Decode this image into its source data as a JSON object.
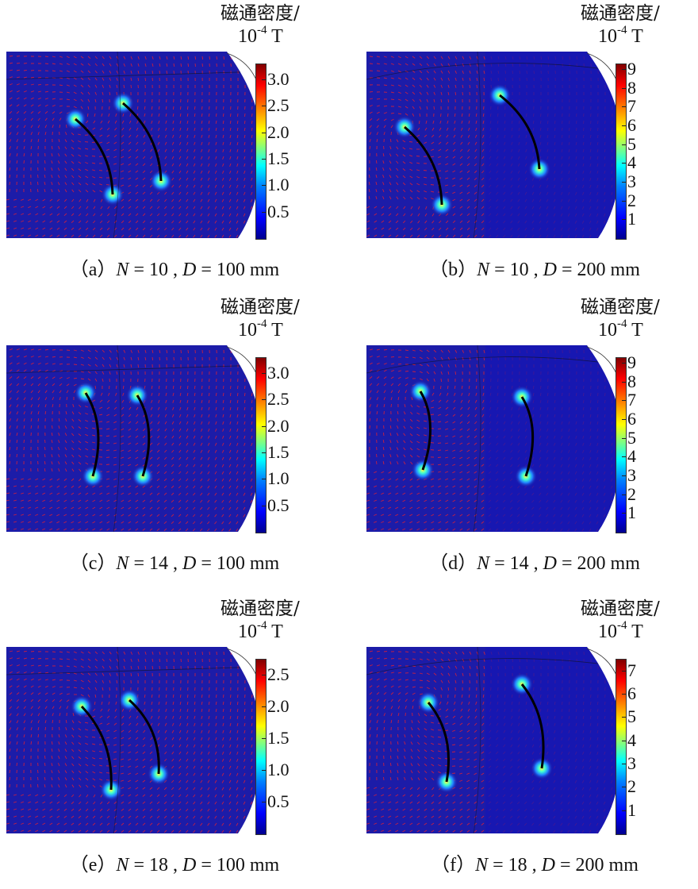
{
  "colorbar_title": "磁通密度/",
  "colorbar_unit": {
    "base": "10",
    "exponent": "-4",
    "symbol": "T"
  },
  "colormap": [
    "#00008f",
    "#0000ff",
    "#00ffff",
    "#ffff00",
    "#ff0000",
    "#800000"
  ],
  "field_color": "#1c1ca8",
  "arrow_color": "#ff2020",
  "panels": [
    {
      "label": "a",
      "N": "10",
      "D": "100",
      "unit": "mm",
      "ticks": [
        "3.0",
        "2.5",
        "2.0",
        "1.5",
        "1.0",
        "0.5"
      ],
      "range": [
        0,
        3.3
      ]
    },
    {
      "label": "b",
      "N": "10",
      "D": "200",
      "unit": "mm",
      "ticks": [
        "9",
        "8",
        "7",
        "6",
        "5",
        "4",
        "3",
        "2",
        "1"
      ],
      "range": [
        0,
        9.3
      ]
    },
    {
      "label": "c",
      "N": "14",
      "D": "100",
      "unit": "mm",
      "ticks": [
        "3.0",
        "2.5",
        "2.0",
        "1.5",
        "1.0",
        "0.5"
      ],
      "range": [
        0,
        3.3
      ]
    },
    {
      "label": "d",
      "N": "14",
      "D": "200",
      "unit": "mm",
      "ticks": [
        "9",
        "8",
        "7",
        "6",
        "5",
        "4",
        "3",
        "2",
        "1"
      ],
      "range": [
        0,
        9.3
      ]
    },
    {
      "label": "e",
      "N": "18",
      "D": "100",
      "unit": "mm",
      "ticks": [
        "2.5",
        "2.0",
        "1.5",
        "1.0",
        "0.5"
      ],
      "range": [
        0,
        2.75
      ]
    },
    {
      "label": "f",
      "N": "18",
      "D": "200",
      "unit": "mm",
      "ticks": [
        "7",
        "6",
        "5",
        "4",
        "3",
        "2",
        "1"
      ],
      "range": [
        0,
        7.5
      ]
    }
  ]
}
